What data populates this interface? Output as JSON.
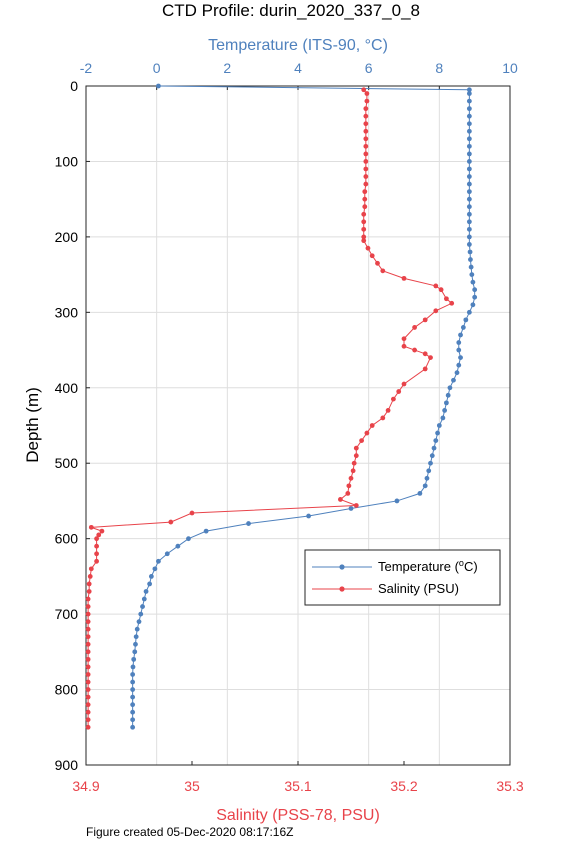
{
  "chart_data": {
    "type": "line",
    "title": "CTD Profile: durin_2020_337_0_8",
    "footer": "Figure created 05-Dec-2020 08:17:16Z",
    "ylabel": "Depth (m)",
    "ylim": [
      900,
      0
    ],
    "yticks": [
      "0",
      "100",
      "200",
      "300",
      "400",
      "500",
      "600",
      "700",
      "800",
      "900"
    ],
    "top_axis": {
      "label": "Temperature (ITS-90, °C)",
      "lim": [
        -2,
        10
      ],
      "ticks": [
        "-2",
        "0",
        "2",
        "4",
        "6",
        "8",
        "10"
      ]
    },
    "bottom_axis": {
      "label": "Salinity (PSS-78, PSU)",
      "lim": [
        34.9,
        35.3
      ],
      "ticks": [
        "34.9",
        "35",
        "35.1",
        "35.2",
        "35.3"
      ]
    },
    "grid": true,
    "legend_position": "right, lower-middle",
    "legend": {
      "temperature": "Temperature (°C)",
      "salinity": "Salinity (PSU)"
    },
    "colors": {
      "temperature": "#4f81bd",
      "salinity": "#e8434a"
    },
    "series": [
      {
        "name": "Temperature (°C)",
        "axis": "top",
        "points": [
          [
            0.05,
            0
          ],
          [
            8.85,
            5
          ],
          [
            8.85,
            10
          ],
          [
            8.85,
            20
          ],
          [
            8.85,
            30
          ],
          [
            8.85,
            40
          ],
          [
            8.85,
            50
          ],
          [
            8.85,
            60
          ],
          [
            8.85,
            70
          ],
          [
            8.85,
            80
          ],
          [
            8.85,
            90
          ],
          [
            8.85,
            100
          ],
          [
            8.85,
            110
          ],
          [
            8.85,
            120
          ],
          [
            8.85,
            130
          ],
          [
            8.85,
            140
          ],
          [
            8.85,
            150
          ],
          [
            8.85,
            160
          ],
          [
            8.85,
            170
          ],
          [
            8.85,
            180
          ],
          [
            8.85,
            190
          ],
          [
            8.85,
            200
          ],
          [
            8.85,
            210
          ],
          [
            8.87,
            220
          ],
          [
            8.88,
            230
          ],
          [
            8.9,
            240
          ],
          [
            8.92,
            250
          ],
          [
            8.95,
            260
          ],
          [
            9.0,
            270
          ],
          [
            9.0,
            280
          ],
          [
            8.95,
            290
          ],
          [
            8.85,
            300
          ],
          [
            8.75,
            310
          ],
          [
            8.68,
            320
          ],
          [
            8.6,
            330
          ],
          [
            8.55,
            340
          ],
          [
            8.55,
            350
          ],
          [
            8.6,
            360
          ],
          [
            8.55,
            370
          ],
          [
            8.5,
            380
          ],
          [
            8.4,
            390
          ],
          [
            8.3,
            400
          ],
          [
            8.25,
            410
          ],
          [
            8.2,
            420
          ],
          [
            8.15,
            430
          ],
          [
            8.1,
            440
          ],
          [
            8.0,
            450
          ],
          [
            7.95,
            460
          ],
          [
            7.9,
            470
          ],
          [
            7.85,
            480
          ],
          [
            7.8,
            490
          ],
          [
            7.75,
            500
          ],
          [
            7.7,
            510
          ],
          [
            7.65,
            520
          ],
          [
            7.6,
            530
          ],
          [
            7.45,
            540
          ],
          [
            6.8,
            550
          ],
          [
            5.5,
            560
          ],
          [
            4.3,
            570
          ],
          [
            2.6,
            580
          ],
          [
            1.4,
            590
          ],
          [
            0.9,
            600
          ],
          [
            0.6,
            610
          ],
          [
            0.3,
            620
          ],
          [
            0.05,
            630
          ],
          [
            -0.05,
            640
          ],
          [
            -0.15,
            650
          ],
          [
            -0.2,
            660
          ],
          [
            -0.3,
            670
          ],
          [
            -0.35,
            680
          ],
          [
            -0.4,
            690
          ],
          [
            -0.45,
            700
          ],
          [
            -0.5,
            710
          ],
          [
            -0.55,
            720
          ],
          [
            -0.58,
            730
          ],
          [
            -0.6,
            740
          ],
          [
            -0.62,
            750
          ],
          [
            -0.65,
            760
          ],
          [
            -0.67,
            770
          ],
          [
            -0.68,
            780
          ],
          [
            -0.68,
            790
          ],
          [
            -0.68,
            800
          ],
          [
            -0.68,
            810
          ],
          [
            -0.68,
            820
          ],
          [
            -0.68,
            830
          ],
          [
            -0.68,
            840
          ],
          [
            -0.68,
            850
          ]
        ]
      },
      {
        "name": "Salinity (PSU)",
        "axis": "bottom",
        "points": [
          [
            35.162,
            5
          ],
          [
            35.165,
            10
          ],
          [
            35.165,
            20
          ],
          [
            35.164,
            30
          ],
          [
            35.164,
            40
          ],
          [
            35.164,
            50
          ],
          [
            35.164,
            60
          ],
          [
            35.164,
            70
          ],
          [
            35.164,
            80
          ],
          [
            35.164,
            90
          ],
          [
            35.164,
            100
          ],
          [
            35.164,
            110
          ],
          [
            35.164,
            120
          ],
          [
            35.164,
            130
          ],
          [
            35.163,
            140
          ],
          [
            35.163,
            150
          ],
          [
            35.163,
            160
          ],
          [
            35.162,
            170
          ],
          [
            35.162,
            180
          ],
          [
            35.162,
            190
          ],
          [
            35.162,
            200
          ],
          [
            35.162,
            205
          ],
          [
            35.166,
            215
          ],
          [
            35.17,
            225
          ],
          [
            35.175,
            235
          ],
          [
            35.18,
            245
          ],
          [
            35.2,
            255
          ],
          [
            35.23,
            265
          ],
          [
            35.235,
            270
          ],
          [
            35.24,
            282
          ],
          [
            35.245,
            288
          ],
          [
            35.23,
            298
          ],
          [
            35.22,
            310
          ],
          [
            35.21,
            320
          ],
          [
            35.2,
            335
          ],
          [
            35.2,
            345
          ],
          [
            35.21,
            350
          ],
          [
            35.22,
            355
          ],
          [
            35.225,
            360
          ],
          [
            35.22,
            375
          ],
          [
            35.2,
            395
          ],
          [
            35.195,
            405
          ],
          [
            35.19,
            415
          ],
          [
            35.185,
            430
          ],
          [
            35.18,
            440
          ],
          [
            35.17,
            450
          ],
          [
            35.165,
            460
          ],
          [
            35.16,
            470
          ],
          [
            35.155,
            480
          ],
          [
            35.155,
            490
          ],
          [
            35.153,
            500
          ],
          [
            35.152,
            510
          ],
          [
            35.15,
            520
          ],
          [
            35.148,
            530
          ],
          [
            35.147,
            540
          ],
          [
            35.14,
            548
          ],
          [
            35.155,
            556
          ],
          [
            35.0,
            566
          ],
          [
            34.98,
            578
          ],
          [
            34.905,
            585
          ],
          [
            34.915,
            590
          ],
          [
            34.912,
            595
          ],
          [
            34.91,
            600
          ],
          [
            34.91,
            610
          ],
          [
            34.91,
            620
          ],
          [
            34.91,
            630
          ],
          [
            34.905,
            640
          ],
          [
            34.904,
            650
          ],
          [
            34.903,
            660
          ],
          [
            34.903,
            670
          ],
          [
            34.902,
            680
          ],
          [
            34.902,
            690
          ],
          [
            34.902,
            700
          ],
          [
            34.902,
            710
          ],
          [
            34.902,
            720
          ],
          [
            34.902,
            730
          ],
          [
            34.902,
            740
          ],
          [
            34.902,
            750
          ],
          [
            34.902,
            760
          ],
          [
            34.902,
            770
          ],
          [
            34.902,
            780
          ],
          [
            34.902,
            790
          ],
          [
            34.902,
            800
          ],
          [
            34.902,
            810
          ],
          [
            34.902,
            820
          ],
          [
            34.902,
            830
          ],
          [
            34.902,
            840
          ],
          [
            34.902,
            850
          ]
        ]
      }
    ]
  }
}
